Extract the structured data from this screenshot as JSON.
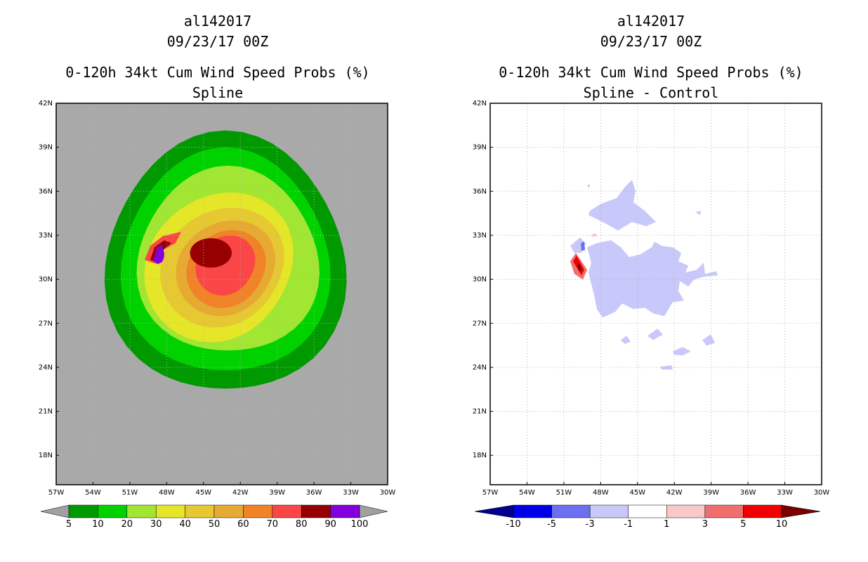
{
  "chart_data": [
    {
      "type": "contour",
      "title_lines": [
        "al142017",
        "09/23/17 00Z",
        "0-120h 34kt Cum Wind Speed Probs (%)",
        "Spline"
      ],
      "xlim": [
        -57,
        -30
      ],
      "ylim": [
        16,
        42
      ],
      "x_ticks": [
        "57W",
        "54W",
        "51W",
        "48W",
        "45W",
        "42W",
        "39W",
        "36W",
        "33W",
        "30W"
      ],
      "y_ticks": [
        "18N",
        "21N",
        "24N",
        "27N",
        "30N",
        "33N",
        "36N",
        "39N",
        "42N"
      ],
      "background_color": "#a9a9a9",
      "colorbar": {
        "levels": [
          "5",
          "10",
          "20",
          "30",
          "40",
          "50",
          "60",
          "70",
          "80",
          "90",
          "100"
        ],
        "colors": [
          "#009a00",
          "#00d200",
          "#a0e632",
          "#e6e628",
          "#e6c832",
          "#e6aa32",
          "#f08228",
          "#fa4646",
          "#960000",
          "#8200dc"
        ],
        "under_color": "#a0a0a0",
        "over_color": "#a0a0a0"
      },
      "center": {
        "lon": -43.2,
        "lat": 31.0
      },
      "regions": [
        {
          "level": "5-10",
          "lon_radius": 9.8,
          "lat_radius": 8.8
        },
        {
          "level": "10-20",
          "lon_radius": 8.5,
          "lat_radius": 7.6
        },
        {
          "level": "20-30",
          "lon_radius": 7.4,
          "lat_radius": 6.3
        },
        {
          "level": "30-40",
          "lon_radius": 6.0,
          "lat_radius": 5.0
        },
        {
          "level": "40-50",
          "lon_radius": 5.0,
          "lat_radius": 4.0
        },
        {
          "level": "50-60",
          "lon_radius": 4.0,
          "lat_radius": 3.2
        },
        {
          "level": "60-70",
          "lon_radius": 3.2,
          "lat_radius": 2.6
        },
        {
          "level": "70-80",
          "lon_radius": 2.4,
          "lat_radius": 2.0
        },
        {
          "level": "80-90",
          "lon_radius": 1.7,
          "lat_radius": 1.0
        },
        {
          "level": "90-100",
          "lon_radius": 0.4,
          "lat_radius": 0.6
        }
      ]
    },
    {
      "type": "contour",
      "title_lines": [
        "al142017",
        "09/23/17 00Z",
        "0-120h 34kt Cum Wind Speed Probs (%)",
        "Spline - Control"
      ],
      "xlim": [
        -57,
        -30
      ],
      "ylim": [
        16,
        42
      ],
      "x_ticks": [
        "57W",
        "54W",
        "51W",
        "48W",
        "45W",
        "42W",
        "39W",
        "36W",
        "33W",
        "30W"
      ],
      "y_ticks": [
        "18N",
        "21N",
        "24N",
        "27N",
        "30N",
        "33N",
        "36N",
        "39N",
        "42N"
      ],
      "background_color": "#ffffff",
      "colorbar": {
        "levels": [
          "-10",
          "-5",
          "-3",
          "-1",
          "1",
          "3",
          "5",
          "10"
        ],
        "colors": [
          "#0000e6",
          "#6e6ef0",
          "#c8c8fa",
          "#ffffff",
          "#fac8c8",
          "#f06e6e",
          "#f00000"
        ],
        "under_color": "#00008c",
        "over_color": "#780000"
      },
      "regions": [
        {
          "level": "-3 to -1",
          "area": "main light-blue patches around 45W 30N"
        },
        {
          "level": "5 to 10",
          "center_lon": -49.6,
          "center_lat": 30.9
        },
        {
          "level": "-5 to -3",
          "center_lon": -49.0,
          "center_lat": 32.2
        }
      ]
    }
  ]
}
